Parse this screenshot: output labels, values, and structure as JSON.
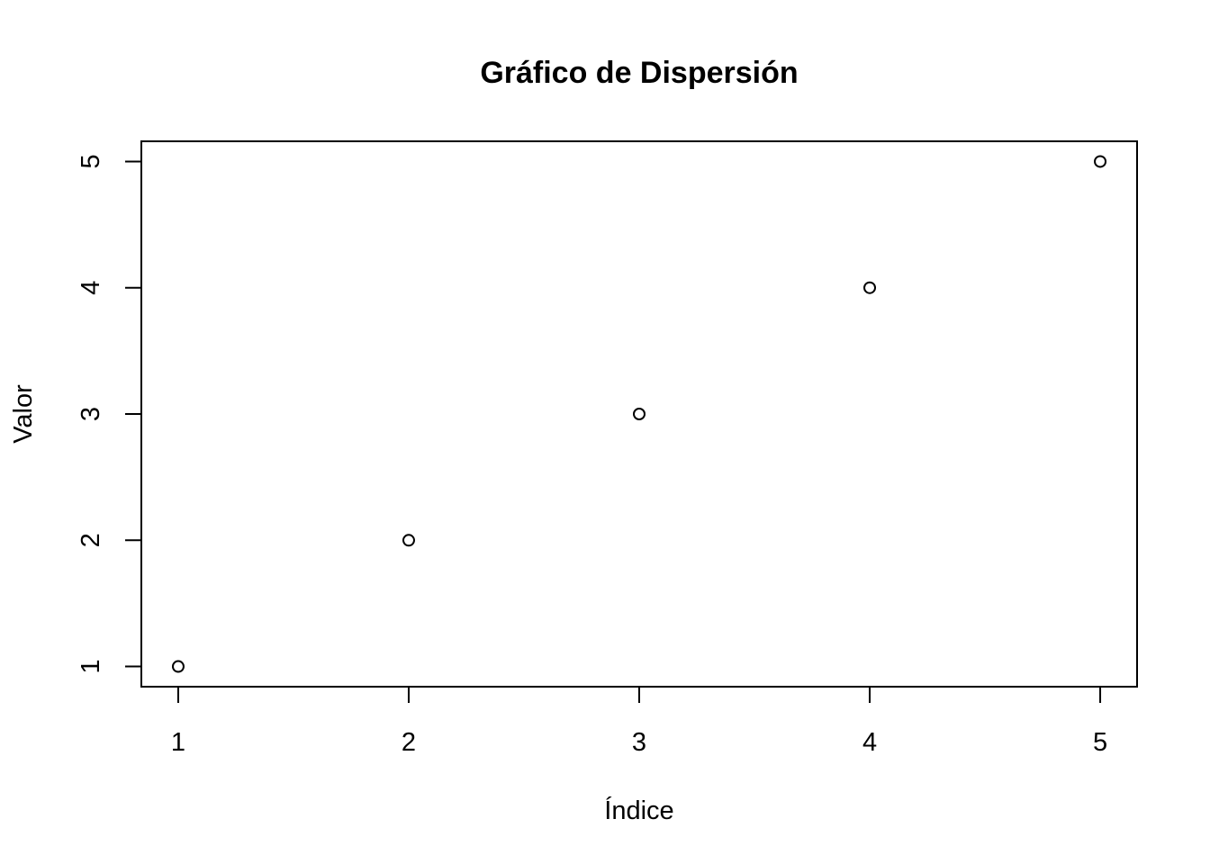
{
  "chart_data": {
    "type": "scatter",
    "title": "Gráfico de Dispersión",
    "xlabel": "Índice",
    "ylabel": "Valor",
    "x": [
      1,
      2,
      3,
      4,
      5
    ],
    "y": [
      1,
      2,
      3,
      4,
      5
    ],
    "xlim": [
      0.84,
      5.16
    ],
    "ylim": [
      0.84,
      5.16
    ],
    "xticks": [
      1,
      2,
      3,
      4,
      5
    ],
    "yticks": [
      1,
      2,
      3,
      4,
      5
    ],
    "marker": "open-circle",
    "grid": false,
    "colors": {
      "point": "#000000",
      "axis": "#000000",
      "background": "#ffffff"
    }
  }
}
